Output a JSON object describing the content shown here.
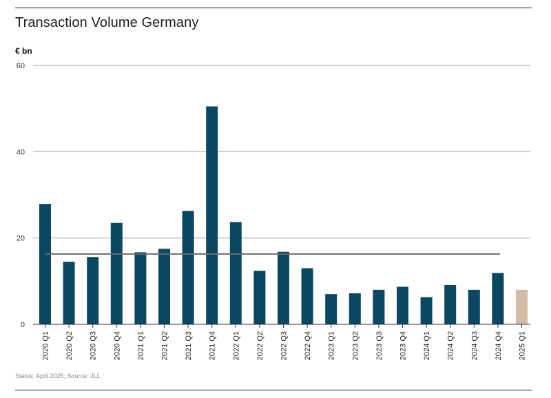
{
  "title": "Transaction Volume Germany",
  "unit_label": "€ bn",
  "footer": "Status: April 2025; Source: JLL",
  "colors": {
    "bar": "#0b4760",
    "bar_highlight": "#d2bca8",
    "average_line": "#6b6b6b",
    "gridline": "#9e9e9e",
    "axis": "#333333"
  },
  "chart_data": {
    "type": "bar",
    "title": "Transaction Volume Germany",
    "ylabel": "€ bn",
    "xlabel": "",
    "ylim": [
      0,
      60
    ],
    "yticks": [
      0,
      20,
      40,
      60
    ],
    "grid": true,
    "categories": [
      "2020 Q1",
      "2020 Q2",
      "2020 Q3",
      "2020 Q4",
      "2021 Q1",
      "2021 Q2",
      "2021 Q3",
      "2021 Q4",
      "2022 Q1",
      "2022 Q2",
      "2022 Q3",
      "2022 Q4",
      "2023 Q1",
      "2023 Q2",
      "2023 Q3",
      "2023 Q4",
      "2024 Q1",
      "2024 Q2",
      "2024 Q3",
      "2024 Q4",
      "2025 Q1"
    ],
    "values": [
      27.9,
      14.5,
      15.6,
      23.5,
      16.7,
      17.5,
      26.3,
      50.5,
      23.7,
      12.4,
      16.8,
      13.0,
      7.0,
      7.2,
      8.0,
      8.7,
      6.3,
      9.1,
      8.0,
      11.9,
      8.0
    ],
    "highlight_index": 20,
    "average": 16.3
  }
}
